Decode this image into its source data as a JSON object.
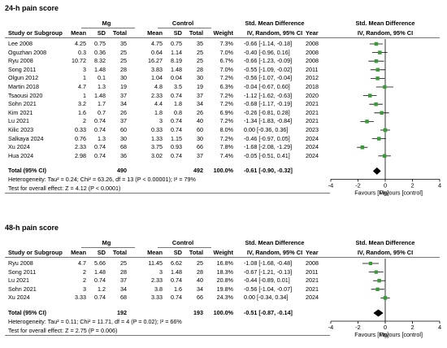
{
  "chart_data": [
    {
      "type": "table",
      "title": "24-h pain score",
      "headers": {
        "group_mg": "Mg",
        "group_control": "Control",
        "study": "Study or Subgroup",
        "mean": "Mean",
        "sd": "SD",
        "total": "Total",
        "weight": "Weight",
        "smd_col": "Std. Mean Difference",
        "smd_sub": "IV, Random, 95% CI",
        "year": "Year",
        "plot_col": "Std. Mean Difference",
        "plot_sub": "IV, Random, 95% CI"
      },
      "studies": [
        {
          "study": "Lee 2008",
          "mg_mean": "4.25",
          "mg_sd": "0.75",
          "mg_total": "35",
          "c_mean": "4.75",
          "c_sd": "0.75",
          "c_total": "35",
          "weight": "7.3%",
          "ci": "-0.66 [-1.14, -0.18]",
          "year": "2008",
          "smd": -0.66,
          "lo": -1.14,
          "hi": -0.18,
          "w": 7.3
        },
        {
          "study": "Oguzhan 2008",
          "mg_mean": "0.3",
          "mg_sd": "0.36",
          "mg_total": "25",
          "c_mean": "0.64",
          "c_sd": "1.14",
          "c_total": "25",
          "weight": "7.0%",
          "ci": "-0.40 [-0.96, 0.16]",
          "year": "2008",
          "smd": -0.4,
          "lo": -0.96,
          "hi": 0.16,
          "w": 7.0
        },
        {
          "study": "Ryu 2008",
          "mg_mean": "10.72",
          "mg_sd": "8.32",
          "mg_total": "25",
          "c_mean": "16.27",
          "c_sd": "8.19",
          "c_total": "25",
          "weight": "6.7%",
          "ci": "-0.66 [-1.23, -0.09]",
          "year": "2008",
          "smd": -0.66,
          "lo": -1.23,
          "hi": -0.09,
          "w": 6.7
        },
        {
          "study": "Song 2011",
          "mg_mean": "3",
          "mg_sd": "1.48",
          "mg_total": "28",
          "c_mean": "3.83",
          "c_sd": "1.48",
          "c_total": "28",
          "weight": "7.0%",
          "ci": "-0.55 [-1.09, -0.02]",
          "year": "2011",
          "smd": -0.55,
          "lo": -1.09,
          "hi": -0.02,
          "w": 7.0
        },
        {
          "study": "Olgun 2012",
          "mg_mean": "1",
          "mg_sd": "0.1",
          "mg_total": "30",
          "c_mean": "1.04",
          "c_sd": "0.04",
          "c_total": "30",
          "weight": "7.2%",
          "ci": "-0.56 [-1.07, -0.04]",
          "year": "2012",
          "smd": -0.56,
          "lo": -1.07,
          "hi": -0.04,
          "w": 7.2
        },
        {
          "study": "Martin 2018",
          "mg_mean": "4.7",
          "mg_sd": "1.3",
          "mg_total": "19",
          "c_mean": "4.8",
          "c_sd": "3.5",
          "c_total": "19",
          "weight": "6.3%",
          "ci": "-0.04 [-0.67, 0.60]",
          "year": "2018",
          "smd": -0.04,
          "lo": -0.67,
          "hi": 0.6,
          "w": 6.3
        },
        {
          "study": "Tsaousi 2020",
          "mg_mean": "1",
          "mg_sd": "1.48",
          "mg_total": "37",
          "c_mean": "2.33",
          "c_sd": "0.74",
          "c_total": "37",
          "weight": "7.2%",
          "ci": "-1.12 [-1.62, -0.63]",
          "year": "2020",
          "smd": -1.12,
          "lo": -1.62,
          "hi": -0.63,
          "w": 7.2
        },
        {
          "study": "Sohn 2021",
          "mg_mean": "3.2",
          "mg_sd": "1.7",
          "mg_total": "34",
          "c_mean": "4.4",
          "c_sd": "1.8",
          "c_total": "34",
          "weight": "7.2%",
          "ci": "-0.68 [-1.17, -0.19]",
          "year": "2021",
          "smd": -0.68,
          "lo": -1.17,
          "hi": -0.19,
          "w": 7.2
        },
        {
          "study": "Kim 2021",
          "mg_mean": "1.6",
          "mg_sd": "0.7",
          "mg_total": "26",
          "c_mean": "1.8",
          "c_sd": "0.8",
          "c_total": "26",
          "weight": "6.9%",
          "ci": "-0.26 [-0.81, 0.28]",
          "year": "2021",
          "smd": -0.26,
          "lo": -0.81,
          "hi": 0.28,
          "w": 6.9
        },
        {
          "study": "Lu 2021",
          "mg_mean": "2",
          "mg_sd": "0.74",
          "mg_total": "37",
          "c_mean": "3",
          "c_sd": "0.74",
          "c_total": "40",
          "weight": "7.2%",
          "ci": "-1.34 [-1.83, -0.84]",
          "year": "2021",
          "smd": -1.34,
          "lo": -1.83,
          "hi": -0.84,
          "w": 7.2
        },
        {
          "study": "Kilic 2023",
          "mg_mean": "0.33",
          "mg_sd": "0.74",
          "mg_total": "60",
          "c_mean": "0.33",
          "c_sd": "0.74",
          "c_total": "60",
          "weight": "8.0%",
          "ci": "0.00 [-0.36, 0.36]",
          "year": "2023",
          "smd": 0.0,
          "lo": -0.36,
          "hi": 0.36,
          "w": 8.0
        },
        {
          "study": "Salkaya 2024",
          "mg_mean": "0.76",
          "mg_sd": "1.3",
          "mg_total": "30",
          "c_mean": "1.33",
          "c_sd": "1.15",
          "c_total": "30",
          "weight": "7.2%",
          "ci": "-0.46 [-0.97, 0.05]",
          "year": "2024",
          "smd": -0.46,
          "lo": -0.97,
          "hi": 0.05,
          "w": 7.2
        },
        {
          "study": "Xu 2024",
          "mg_mean": "2.33",
          "mg_sd": "0.74",
          "mg_total": "68",
          "c_mean": "3.75",
          "c_sd": "0.93",
          "c_total": "66",
          "weight": "7.8%",
          "ci": "-1.68 [-2.08, -1.29]",
          "year": "2024",
          "smd": -1.68,
          "lo": -2.08,
          "hi": -1.29,
          "w": 7.8
        },
        {
          "study": "Hua 2024",
          "mg_mean": "2.98",
          "mg_sd": "0.74",
          "mg_total": "36",
          "c_mean": "3.02",
          "c_sd": "0.74",
          "c_total": "37",
          "weight": "7.4%",
          "ci": "-0.05 [-0.51, 0.41]",
          "year": "2024",
          "smd": -0.05,
          "lo": -0.51,
          "hi": 0.41,
          "w": 7.4
        }
      ],
      "total": {
        "label": "Total (95% CI)",
        "mg_total": "490",
        "c_total": "492",
        "weight": "100.0%",
        "ci": "-0.61 [-0.90, -0.32]",
        "smd": -0.61,
        "lo": -0.9,
        "hi": -0.32
      },
      "heterogeneity": "Heterogeneity: Tau² = 0.24; Chi² = 63.26, df = 13 (P < 0.00001); I² = 79%",
      "overall_effect": "Test for overall effect: Z = 4.12 (P < 0.0001)",
      "axis": {
        "min": -4,
        "max": 4,
        "ticks": [
          -4,
          -2,
          0,
          2,
          4
        ],
        "tick_labels": [
          "-4",
          "-2",
          "0",
          "2",
          "4"
        ],
        "left_label": "Favours [Mg]",
        "right_label": "Favours [control]"
      }
    },
    {
      "type": "table",
      "title": "48-h pain score",
      "headers": {
        "group_mg": "Mg",
        "group_control": "Control",
        "study": "Study or Subgroup",
        "mean": "Mean",
        "sd": "SD",
        "total": "Total",
        "weight": "Weight",
        "smd_col": "Std. Mean Difference",
        "smd_sub": "IV, Random, 95% CI",
        "year": "Year",
        "plot_col": "Std. Mean Difference",
        "plot_sub": "IV, Random, 95% CI"
      },
      "studies": [
        {
          "study": "Ryu 2008",
          "mg_mean": "4.7",
          "mg_sd": "5.66",
          "mg_total": "25",
          "c_mean": "11.45",
          "c_sd": "6.62",
          "c_total": "25",
          "weight": "16.8%",
          "ci": "-1.08 [-1.68, -0.48]",
          "year": "2008",
          "smd": -1.08,
          "lo": -1.68,
          "hi": -0.48,
          "w": 16.8
        },
        {
          "study": "Song 2011",
          "mg_mean": "2",
          "mg_sd": "1.48",
          "mg_total": "28",
          "c_mean": "3",
          "c_sd": "1.48",
          "c_total": "28",
          "weight": "18.3%",
          "ci": "-0.67 [-1.21, -0.13]",
          "year": "2011",
          "smd": -0.67,
          "lo": -1.21,
          "hi": -0.13,
          "w": 18.3
        },
        {
          "study": "Lu 2021",
          "mg_mean": "2",
          "mg_sd": "0.74",
          "mg_total": "37",
          "c_mean": "2.33",
          "c_sd": "0.74",
          "c_total": "40",
          "weight": "20.8%",
          "ci": "-0.44 [-0.89, 0.01]",
          "year": "2021",
          "smd": -0.44,
          "lo": -0.89,
          "hi": 0.01,
          "w": 20.8
        },
        {
          "study": "Sohn 2021",
          "mg_mean": "3",
          "mg_sd": "1.2",
          "mg_total": "34",
          "c_mean": "3.8",
          "c_sd": "1.6",
          "c_total": "34",
          "weight": "19.8%",
          "ci": "-0.56 [-1.04, -0.07]",
          "year": "2021",
          "smd": -0.56,
          "lo": -1.04,
          "hi": -0.07,
          "w": 19.8
        },
        {
          "study": "Xu 2024",
          "mg_mean": "3.33",
          "mg_sd": "0.74",
          "mg_total": "68",
          "c_mean": "3.33",
          "c_sd": "0.74",
          "c_total": "66",
          "weight": "24.3%",
          "ci": "0.00 [-0.34, 0.34]",
          "year": "2024",
          "smd": 0.0,
          "lo": -0.34,
          "hi": 0.34,
          "w": 24.3
        }
      ],
      "total": {
        "label": "Total (95% CI)",
        "mg_total": "192",
        "c_total": "193",
        "weight": "100.0%",
        "ci": "-0.51 [-0.87, -0.14]",
        "smd": -0.51,
        "lo": -0.87,
        "hi": -0.14
      },
      "heterogeneity": "Heterogeneity: Tau² = 0.11; Chi² = 11.71, df = 4 (P = 0.02); I² = 66%",
      "overall_effect": "Test for overall effect: Z = 2.75 (P = 0.006)",
      "axis": {
        "min": -4,
        "max": 4,
        "ticks": [
          -4,
          -2,
          0,
          2,
          4
        ],
        "tick_labels": [
          "-4",
          "-2",
          "0",
          "2",
          "4"
        ],
        "left_label": "Favours [Mg]",
        "right_label": "Favours [control]"
      }
    }
  ],
  "colors": {
    "marker": "#3a9a3a",
    "diamond": "#000000",
    "line": "#000000"
  }
}
